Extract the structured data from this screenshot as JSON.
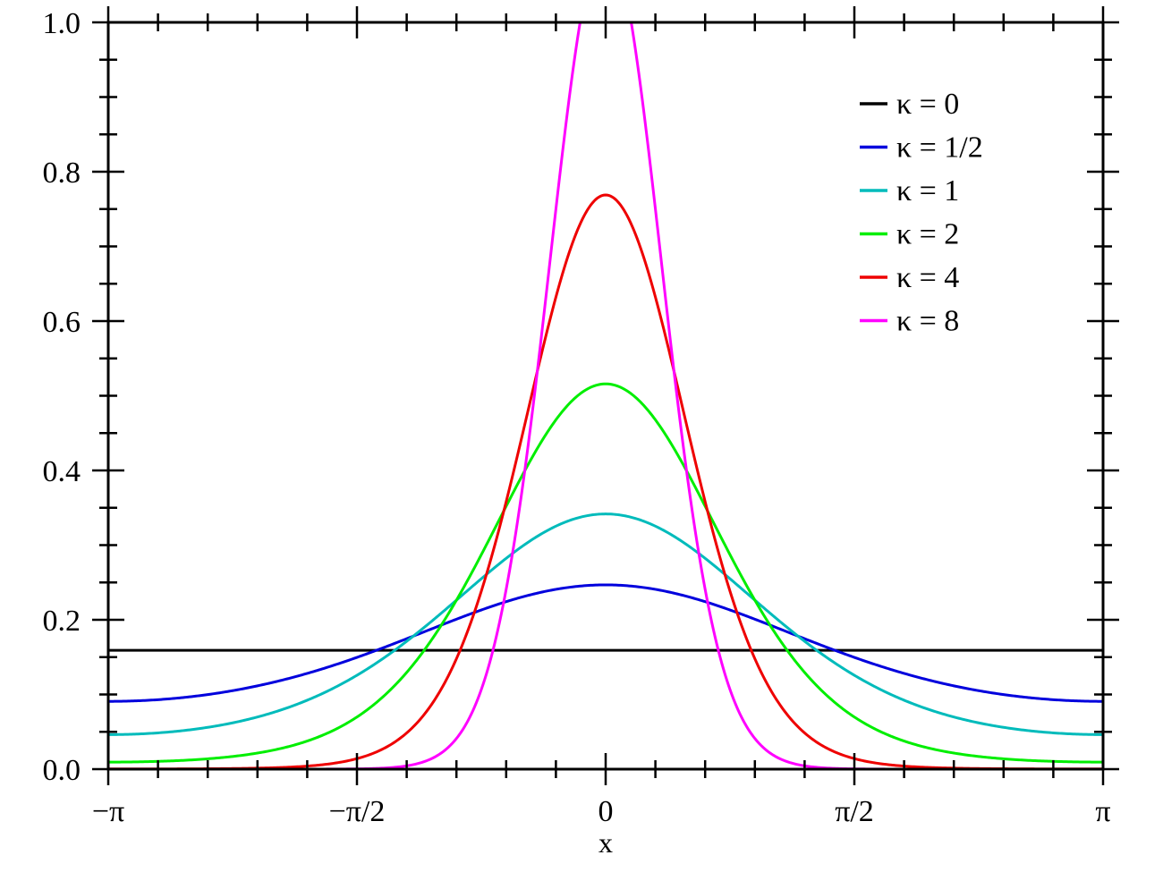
{
  "chart_data": {
    "type": "line",
    "title": "",
    "xlabel": "x",
    "ylabel": "",
    "xlim": [
      -3.14159265,
      3.14159265
    ],
    "ylim": [
      0,
      1.0
    ],
    "x_ticks": [
      {
        "value": -3.14159265,
        "label": "−π"
      },
      {
        "value": -1.57079633,
        "label": "−π/2"
      },
      {
        "value": 0,
        "label": "0"
      },
      {
        "value": 1.57079633,
        "label": "π/2"
      },
      {
        "value": 3.14159265,
        "label": "π"
      }
    ],
    "y_ticks": [
      {
        "value": 0.0,
        "label": "0.0"
      },
      {
        "value": 0.2,
        "label": "0.2"
      },
      {
        "value": 0.4,
        "label": "0.4"
      },
      {
        "value": 0.6,
        "label": "0.6"
      },
      {
        "value": 0.8,
        "label": "0.8"
      },
      {
        "value": 1.0,
        "label": "1.0"
      }
    ],
    "grid": false,
    "legend_position": "top-right",
    "series": [
      {
        "name": "κ = 0",
        "kappa": 0,
        "color": "#000000"
      },
      {
        "name": "κ = 1/2",
        "kappa": 0.5,
        "color": "#0000dd"
      },
      {
        "name": "κ = 1",
        "kappa": 1,
        "color": "#00bbbb"
      },
      {
        "name": "κ = 2",
        "kappa": 2,
        "color": "#00ee00"
      },
      {
        "name": "κ = 4",
        "kappa": 4,
        "color": "#ee0000"
      },
      {
        "name": "κ = 8",
        "kappa": 8,
        "color": "#ff00ff"
      }
    ],
    "x_sample": [
      -3.14159,
      -2.35619,
      -1.5708,
      -0.785398,
      0,
      0.785398,
      1.5708,
      2.35619,
      3.14159
    ],
    "series_values": [
      [
        0.159155,
        0.159155,
        0.159155,
        0.159155,
        0.159155,
        0.159155,
        0.159155,
        0.159155,
        0.159155
      ],
      [
        0.0908,
        0.1107,
        0.1497,
        0.203,
        0.2463,
        0.203,
        0.1497,
        0.1107,
        0.0908
      ],
      [
        0.046,
        0.0664,
        0.1245,
        0.2269,
        0.3412,
        0.2269,
        0.1245,
        0.0664,
        0.046
      ],
      [
        0.008,
        0.0178,
        0.0643,
        0.2147,
        0.5158,
        0.2147,
        0.0643,
        0.0178,
        0.008
      ],
      [
        0.0002,
        0.0011,
        0.0138,
        0.2304,
        0.769,
        0.2304,
        0.0138,
        0.0011,
        0.0002
      ],
      [
        0.0,
        0.0,
        0.0003,
        0.1186,
        1.0998,
        0.1186,
        0.0003,
        0.0,
        0.0
      ]
    ]
  }
}
